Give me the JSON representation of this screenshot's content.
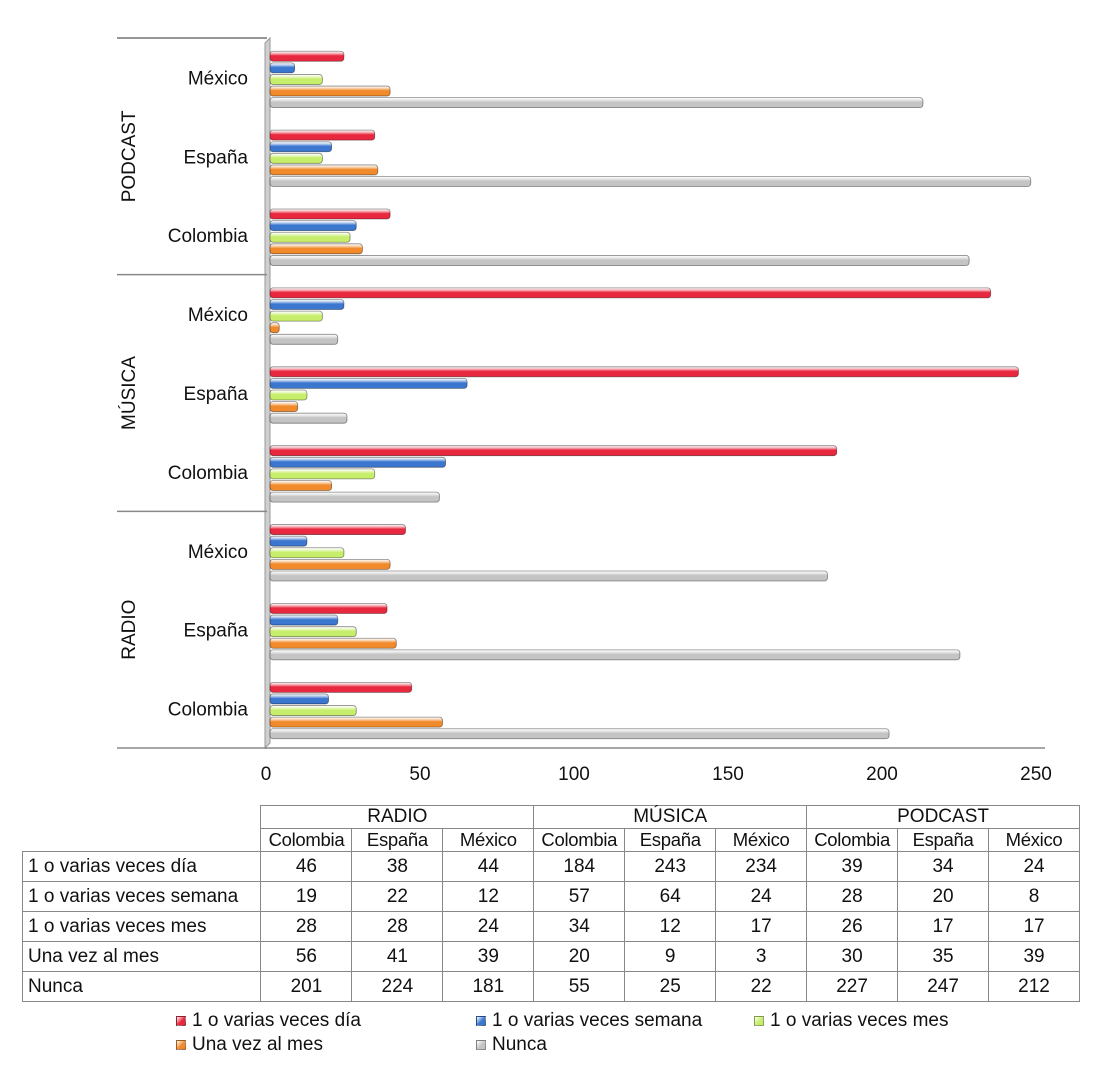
{
  "chart_data": {
    "type": "bar",
    "orientation": "horizontal",
    "groups": [
      {
        "name": "RADIO",
        "categories": [
          "Colombia",
          "España",
          "México"
        ]
      },
      {
        "name": "MÚSICA",
        "categories": [
          "Colombia",
          "España",
          "México"
        ]
      },
      {
        "name": "PODCAST",
        "categories": [
          "Colombia",
          "España",
          "México"
        ]
      }
    ],
    "series": [
      {
        "name": "1 o varias veces día",
        "color": "#e8283e",
        "values": [
          46,
          38,
          44,
          184,
          243,
          234,
          39,
          34,
          24
        ]
      },
      {
        "name": "1 o varias veces semana",
        "color": "#3b76cf",
        "values": [
          19,
          22,
          12,
          57,
          64,
          24,
          28,
          20,
          8
        ]
      },
      {
        "name": "1 o varias veces mes",
        "color": "#c7ee6a",
        "values": [
          28,
          28,
          24,
          34,
          12,
          17,
          26,
          17,
          17
        ]
      },
      {
        "name": "Una vez al mes",
        "color": "#f08a2a",
        "values": [
          56,
          41,
          39,
          20,
          9,
          3,
          30,
          35,
          39
        ]
      },
      {
        "name": "Nunca",
        "color": "#c4c4c4",
        "values": [
          201,
          224,
          181,
          55,
          25,
          22,
          227,
          247,
          212
        ]
      }
    ],
    "xlim": [
      0,
      250
    ],
    "xticks": [
      0,
      50,
      100,
      150,
      200,
      250
    ],
    "legend_position": "bottom",
    "grid": false,
    "data_table": true
  }
}
